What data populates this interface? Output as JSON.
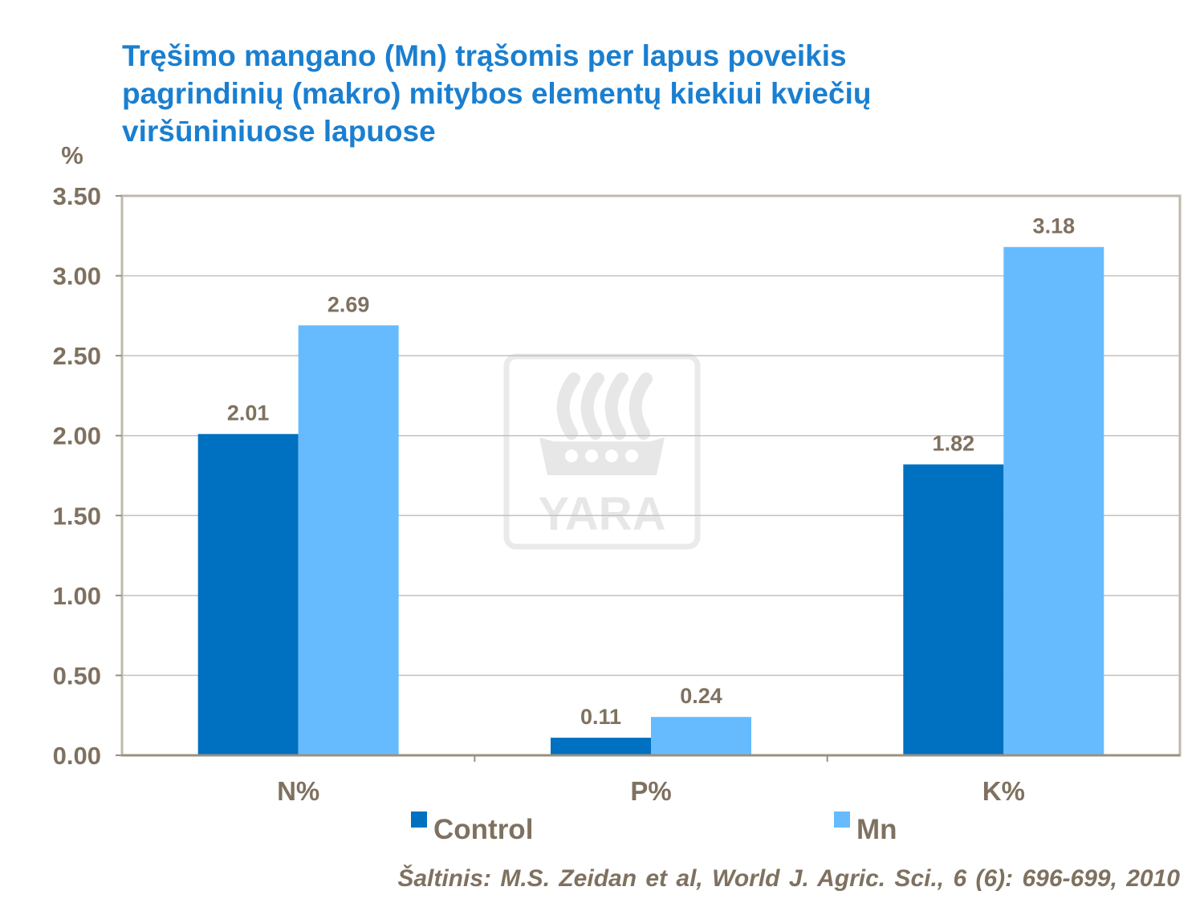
{
  "title_lines": [
    "Tręšimo mangano (Mn) trąšomis per lapus poveikis",
    "pagrindinių (makro) mitybos elementų kiekiui kviečių",
    "viršūniniuose  lapuose"
  ],
  "source": "Šaltinis: M.S. Zeidan et al, World J. Agric. Sci., 6 (6): 696-699, 2010",
  "watermark": {
    "text": "YARA"
  },
  "chart_data": {
    "type": "bar",
    "ylabel": "%",
    "ylim": [
      0,
      3.5
    ],
    "yticks": [
      "0.00",
      "0.50",
      "1.00",
      "1.50",
      "2.00",
      "2.50",
      "3.00",
      "3.50"
    ],
    "categories": [
      "N%",
      "P%",
      "K%"
    ],
    "series": [
      {
        "name": "Control",
        "color": "#0070c0",
        "values": [
          2.01,
          0.11,
          1.82
        ],
        "labels": [
          "2.01",
          "0.11",
          "1.82"
        ]
      },
      {
        "name": "Mn",
        "color": "#66bbff",
        "values": [
          2.69,
          0.24,
          3.18
        ],
        "labels": [
          "2.69",
          "0.24",
          "3.18"
        ]
      }
    ],
    "grid": true,
    "legend_position": "bottom"
  }
}
